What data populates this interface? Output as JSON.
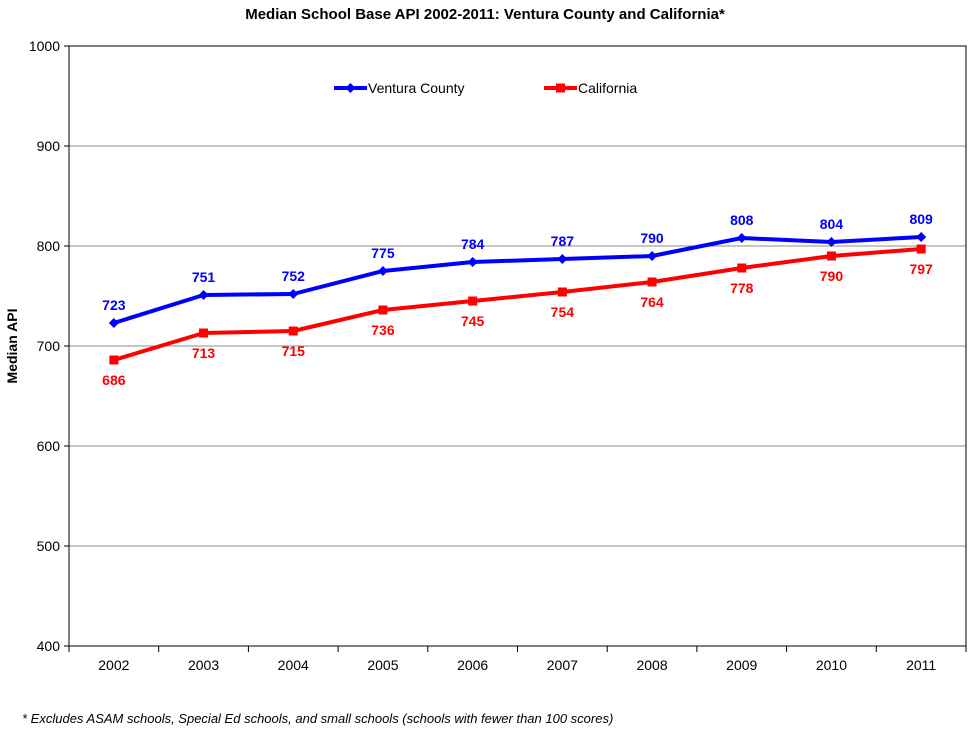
{
  "chart_data": {
    "type": "line",
    "title": "Median School Base API 2002-2011: Ventura County and California*",
    "xlabel": "",
    "ylabel": "Median API",
    "categories": [
      "2002",
      "2003",
      "2004",
      "2005",
      "2006",
      "2007",
      "2008",
      "2009",
      "2010",
      "2011"
    ],
    "ylim": [
      400,
      1000
    ],
    "yticks": [
      400,
      500,
      600,
      700,
      800,
      900,
      1000
    ],
    "grid": true,
    "legend_position": "top",
    "series": [
      {
        "name": "Ventura County",
        "color": "#0000ff",
        "marker": "diamond",
        "values": [
          723,
          751,
          752,
          775,
          784,
          787,
          790,
          808,
          804,
          809
        ]
      },
      {
        "name": "California",
        "color": "#ff0000",
        "marker": "square",
        "values": [
          686,
          713,
          715,
          736,
          745,
          754,
          764,
          778,
          790,
          797
        ]
      }
    ]
  },
  "footnote": "*  Excludes ASAM schools, Special Ed schools, and small schools (schools with fewer than 100 scores)"
}
